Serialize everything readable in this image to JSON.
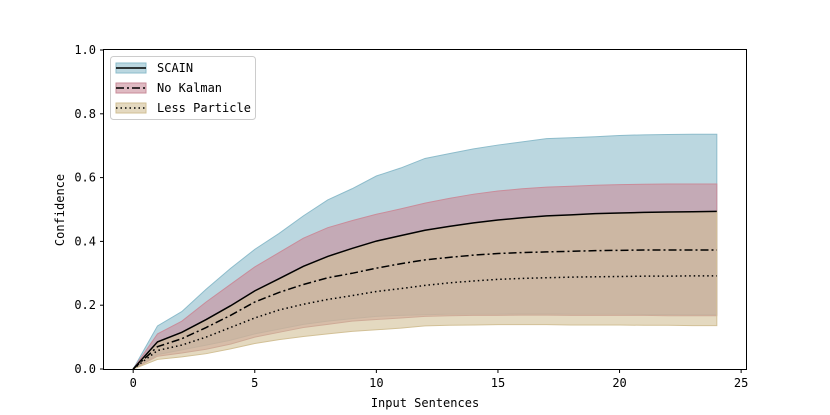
{
  "chart_data": {
    "type": "line",
    "xlabel": "Input Sentences",
    "ylabel": "Confidence",
    "xlim": [
      -1.2,
      25.2
    ],
    "ylim": [
      0.0,
      1.0
    ],
    "xticks": [
      0,
      5,
      10,
      15,
      20,
      25
    ],
    "yticks": [
      0.0,
      0.2,
      0.4,
      0.6,
      0.8,
      1.0
    ],
    "xtick_labels": [
      "0",
      "5",
      "10",
      "15",
      "20",
      "25"
    ],
    "ytick_labels": [
      "0.0",
      "0.2",
      "0.4",
      "0.6",
      "0.8",
      "1.0"
    ],
    "grid": false,
    "legend_position": "top-left",
    "x": [
      0,
      1,
      2,
      3,
      4,
      5,
      6,
      7,
      8,
      9,
      10,
      11,
      12,
      13,
      14,
      15,
      16,
      17,
      18,
      19,
      20,
      21,
      22,
      23,
      24
    ],
    "series": [
      {
        "name": "SCAIN",
        "line_style": "solid",
        "band_color": "#8dbccb",
        "values": [
          0,
          0.085,
          0.115,
          0.155,
          0.198,
          0.245,
          0.283,
          0.322,
          0.353,
          0.378,
          0.401,
          0.418,
          0.435,
          0.447,
          0.458,
          0.467,
          0.474,
          0.48,
          0.483,
          0.487,
          0.489,
          0.491,
          0.492,
          0.493,
          0.494
        ],
        "upper": [
          0,
          0.135,
          0.18,
          0.25,
          0.315,
          0.375,
          0.425,
          0.48,
          0.53,
          0.565,
          0.605,
          0.63,
          0.66,
          0.675,
          0.69,
          0.702,
          0.712,
          0.722,
          0.725,
          0.728,
          0.732,
          0.734,
          0.735,
          0.736,
          0.736
        ],
        "lower": [
          0,
          0.045,
          0.06,
          0.075,
          0.09,
          0.11,
          0.125,
          0.14,
          0.15,
          0.158,
          0.165,
          0.168,
          0.17,
          0.172,
          0.172,
          0.172,
          0.173,
          0.173,
          0.172,
          0.172,
          0.172,
          0.171,
          0.171,
          0.17,
          0.17
        ]
      },
      {
        "name": "No Kalman",
        "line_style": "dashdot",
        "band_color": "#c98c9a",
        "values": [
          0,
          0.07,
          0.095,
          0.13,
          0.168,
          0.21,
          0.24,
          0.265,
          0.286,
          0.3,
          0.316,
          0.33,
          0.342,
          0.35,
          0.357,
          0.362,
          0.365,
          0.367,
          0.369,
          0.371,
          0.372,
          0.373,
          0.373,
          0.373,
          0.373
        ],
        "upper": [
          0,
          0.11,
          0.15,
          0.21,
          0.265,
          0.32,
          0.365,
          0.41,
          0.443,
          0.465,
          0.485,
          0.502,
          0.52,
          0.535,
          0.548,
          0.558,
          0.565,
          0.57,
          0.573,
          0.576,
          0.578,
          0.579,
          0.58,
          0.58,
          0.58
        ],
        "lower": [
          0,
          0.04,
          0.05,
          0.062,
          0.078,
          0.1,
          0.115,
          0.13,
          0.14,
          0.15,
          0.155,
          0.16,
          0.165,
          0.167,
          0.168,
          0.168,
          0.169,
          0.169,
          0.168,
          0.168,
          0.168,
          0.168,
          0.167,
          0.167,
          0.167
        ]
      },
      {
        "name": "Less Particle",
        "line_style": "dotted",
        "band_color": "#d2c096",
        "values": [
          0,
          0.058,
          0.075,
          0.1,
          0.13,
          0.16,
          0.185,
          0.203,
          0.218,
          0.23,
          0.243,
          0.252,
          0.262,
          0.27,
          0.276,
          0.281,
          0.284,
          0.286,
          0.288,
          0.289,
          0.29,
          0.291,
          0.291,
          0.292,
          0.292
        ],
        "upper": [
          0,
          0.085,
          0.115,
          0.155,
          0.198,
          0.245,
          0.283,
          0.322,
          0.353,
          0.378,
          0.401,
          0.418,
          0.435,
          0.447,
          0.458,
          0.467,
          0.474,
          0.48,
          0.483,
          0.487,
          0.489,
          0.491,
          0.492,
          0.493,
          0.494
        ],
        "lower": [
          0,
          0.03,
          0.038,
          0.048,
          0.063,
          0.08,
          0.092,
          0.102,
          0.11,
          0.118,
          0.123,
          0.128,
          0.135,
          0.137,
          0.138,
          0.139,
          0.139,
          0.139,
          0.138,
          0.138,
          0.138,
          0.137,
          0.137,
          0.136,
          0.136
        ]
      }
    ]
  }
}
